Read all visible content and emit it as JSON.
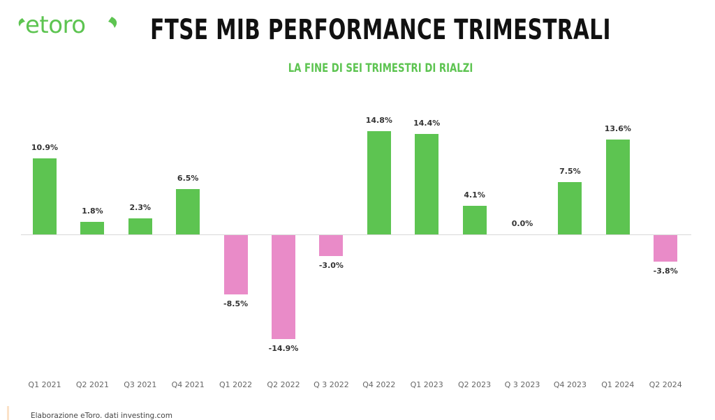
{
  "logo": {
    "text": "etoro",
    "color": "#5dc451"
  },
  "header": {
    "title": "FTSE MIB PERFORMANCE TRIMESTRALI",
    "subtitle": "LA FINE DI SEI TRIMESTRI DI RIALZI"
  },
  "footer": {
    "source": "Elaborazione eToro. dati investing.com"
  },
  "colors": {
    "positive": "#5dc451",
    "negative": "#e98bc8",
    "axis": "#d9d9d9"
  },
  "chart_data": {
    "type": "bar",
    "title": "FTSE MIB PERFORMANCE TRIMESTRALI",
    "subtitle": "LA FINE DI SEI TRIMESTRI DI RIALZI",
    "xlabel": "",
    "ylabel": "",
    "categories": [
      "Q1 2021",
      "Q2 2021",
      "Q3 2021",
      "Q4 2021",
      "Q1 2022",
      "Q2 2022",
      "Q 3 2022",
      "Q4 2022",
      "Q1 2023",
      "Q2 2023",
      "Q 3 2023",
      "Q4 2023",
      "Q1 2024",
      "Q2 2024"
    ],
    "values": [
      10.9,
      1.8,
      2.3,
      6.5,
      -8.5,
      -14.9,
      -3.0,
      14.8,
      14.4,
      4.1,
      0.0,
      7.5,
      13.6,
      -3.8
    ],
    "labels": [
      "10.9%",
      "1.8%",
      "2.3%",
      "6.5%",
      "-8.5%",
      "-14.9%",
      "-3.0%",
      "14.8%",
      "14.4%",
      "4.1%",
      "0.0%",
      "7.5%",
      "13.6%",
      "-3.8%"
    ],
    "unit": "%",
    "ylim": [
      -16,
      16
    ],
    "grid": false,
    "legend": "none",
    "source": "Elaborazione eToro. dati investing.com"
  }
}
